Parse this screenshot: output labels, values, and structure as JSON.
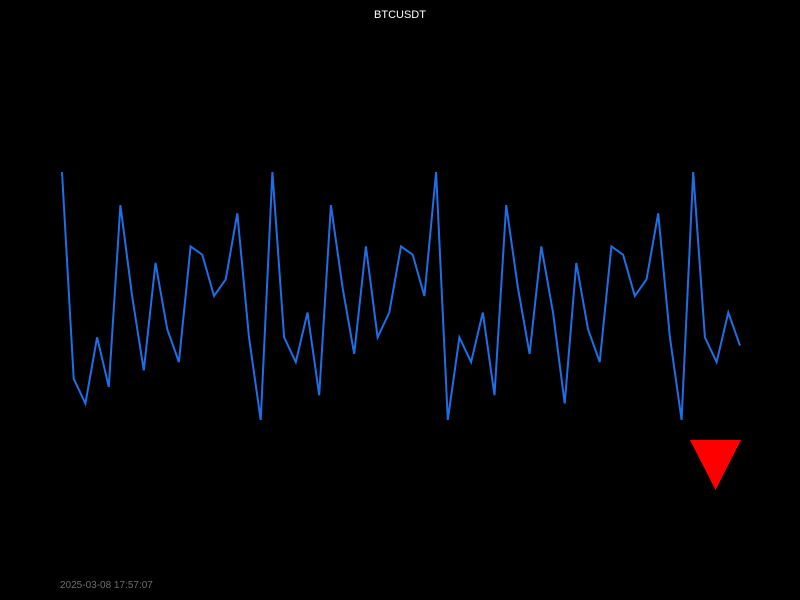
{
  "chart_data": {
    "type": "line",
    "title": "BTCUSDT",
    "xlabel": "",
    "ylabel": "",
    "grid": false,
    "series": [
      {
        "color": "#1e6fe6",
        "values": [
          100,
          75,
          72,
          80,
          74,
          96,
          85,
          76,
          89,
          81,
          77,
          91,
          90,
          85,
          87,
          95,
          80,
          70,
          100,
          80,
          77,
          83,
          73,
          96,
          86,
          78,
          91,
          80,
          83,
          91,
          90,
          85,
          100,
          70,
          80,
          77,
          83,
          73,
          96,
          86,
          78,
          91,
          83,
          72,
          89,
          81,
          77,
          91,
          90,
          85,
          87,
          95,
          80,
          70,
          100,
          80,
          77,
          83,
          79
        ]
      }
    ],
    "ylim": [
      0,
      110
    ],
    "annotation": {
      "type": "down-triangle",
      "color": "#ff0000"
    }
  },
  "footer": {
    "timestamp": "2025-03-08 17:57:07"
  }
}
